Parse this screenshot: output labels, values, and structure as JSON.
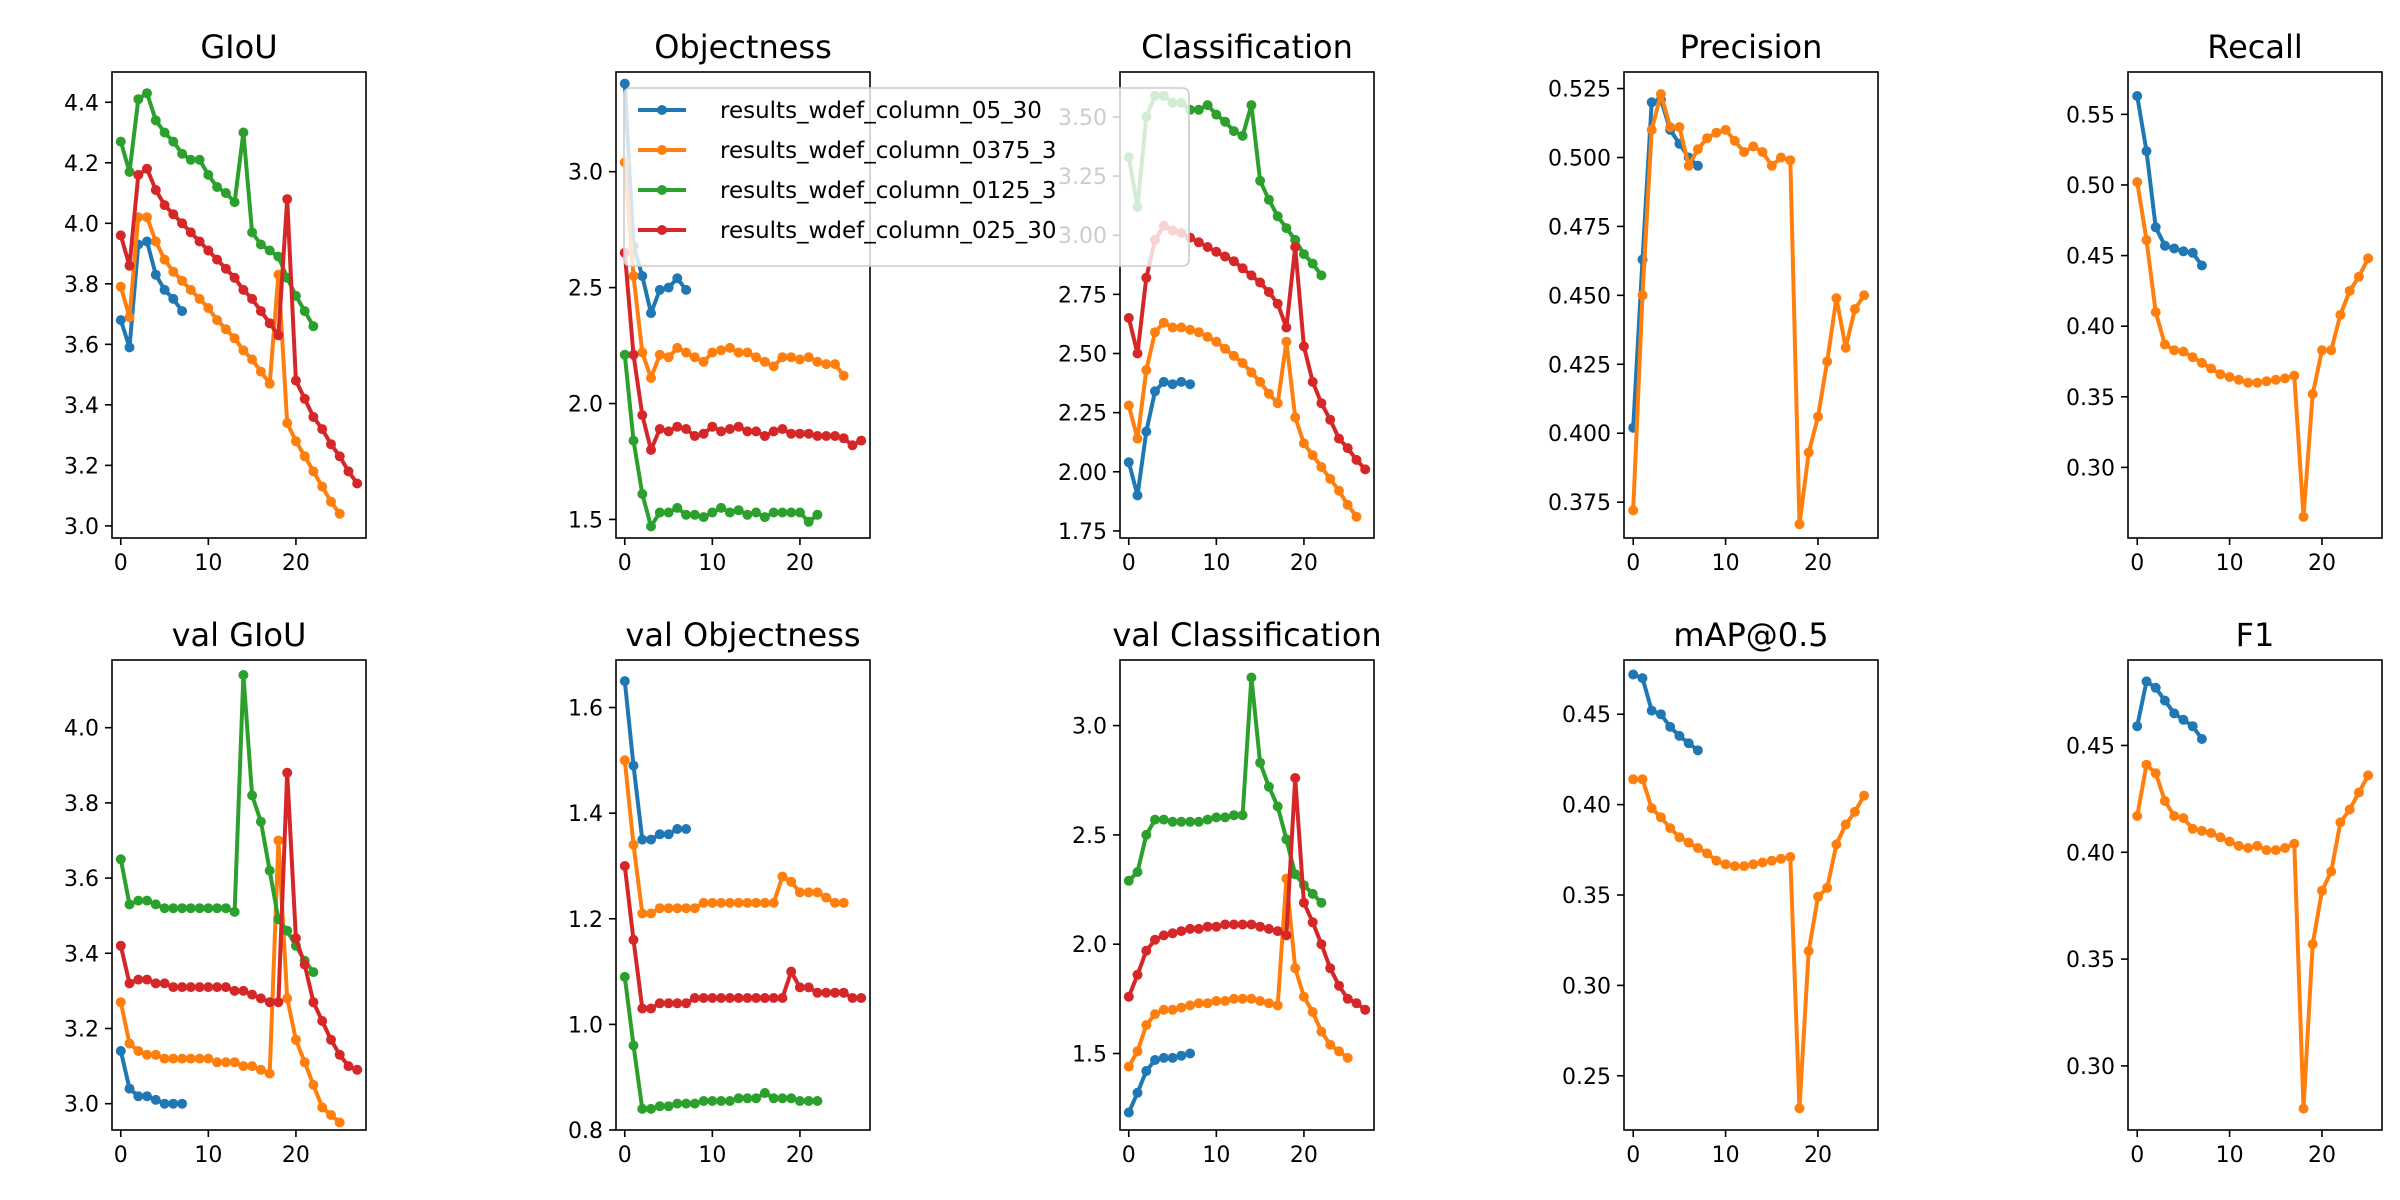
{
  "figure": {
    "background": "#ffffff",
    "series_colors": [
      "#1f77b4",
      "#ff7f0e",
      "#2ca02c",
      "#d62728"
    ]
  },
  "legend": {
    "placement": "overlapping-objectness-classification-top",
    "entries": [
      {
        "label": "results_wdef_column_05_30",
        "color": "#1f77b4"
      },
      {
        "label": "results_wdef_column_0375_3",
        "color": "#ff7f0e"
      },
      {
        "label": "results_wdef_column_0125_3",
        "color": "#2ca02c"
      },
      {
        "label": "results_wdef_column_025_30",
        "color": "#d62728"
      }
    ]
  },
  "chart_data": [
    {
      "type": "line",
      "title": "GIoU",
      "xlim": [
        -1,
        28
      ],
      "ylim": [
        2.96,
        4.5
      ],
      "xticks": [
        0,
        10,
        20
      ],
      "yticks": [
        3.0,
        3.2,
        3.4,
        3.6,
        3.8,
        4.0,
        4.2,
        4.4
      ],
      "ytick_labels": [
        "3.0",
        "3.2",
        "3.4",
        "3.6",
        "3.8",
        "4.0",
        "4.2",
        "4.4"
      ],
      "series": [
        {
          "color": "#1f77b4",
          "values": [
            3.68,
            3.59,
            3.93,
            3.94,
            3.83,
            3.78,
            3.75,
            3.71
          ]
        },
        {
          "color": "#ff7f0e",
          "values": [
            3.79,
            3.69,
            4.02,
            4.02,
            3.94,
            3.88,
            3.84,
            3.81,
            3.78,
            3.75,
            3.72,
            3.68,
            3.65,
            3.62,
            3.58,
            3.55,
            3.51,
            3.47,
            3.83,
            3.34,
            3.28,
            3.23,
            3.18,
            3.13,
            3.08,
            3.04
          ]
        },
        {
          "color": "#2ca02c",
          "values": [
            4.27,
            4.17,
            4.41,
            4.43,
            4.34,
            4.3,
            4.27,
            4.23,
            4.21,
            4.21,
            4.16,
            4.12,
            4.1,
            4.07,
            4.3,
            3.97,
            3.93,
            3.91,
            3.89,
            3.82,
            3.76,
            3.71,
            3.66
          ]
        },
        {
          "color": "#d62728",
          "values": [
            3.96,
            3.86,
            4.16,
            4.18,
            4.11,
            4.06,
            4.03,
            4.0,
            3.97,
            3.94,
            3.91,
            3.88,
            3.85,
            3.82,
            3.78,
            3.75,
            3.71,
            3.67,
            3.63,
            4.08,
            3.48,
            3.42,
            3.36,
            3.32,
            3.27,
            3.23,
            3.18,
            3.14
          ]
        }
      ]
    },
    {
      "type": "line",
      "title": "Objectness",
      "xlim": [
        -1,
        28
      ],
      "ylim": [
        1.42,
        3.43
      ],
      "xticks": [
        0,
        10,
        20
      ],
      "yticks": [
        1.5,
        2.0,
        2.5,
        3.0
      ],
      "ytick_labels": [
        "1.5",
        "2.0",
        "2.5",
        "3.0"
      ],
      "series": [
        {
          "color": "#1f77b4",
          "values": [
            3.38,
            2.68,
            2.55,
            2.39,
            2.49,
            2.5,
            2.54,
            2.49
          ]
        },
        {
          "color": "#ff7f0e",
          "values": [
            3.04,
            2.55,
            2.22,
            2.11,
            2.21,
            2.2,
            2.24,
            2.22,
            2.2,
            2.18,
            2.22,
            2.23,
            2.24,
            2.22,
            2.22,
            2.2,
            2.18,
            2.16,
            2.2,
            2.2,
            2.19,
            2.2,
            2.18,
            2.17,
            2.17,
            2.12
          ]
        },
        {
          "color": "#2ca02c",
          "values": [
            2.21,
            1.84,
            1.61,
            1.47,
            1.53,
            1.53,
            1.55,
            1.52,
            1.52,
            1.51,
            1.53,
            1.55,
            1.53,
            1.54,
            1.52,
            1.53,
            1.51,
            1.53,
            1.53,
            1.53,
            1.53,
            1.49,
            1.52
          ]
        },
        {
          "color": "#d62728",
          "values": [
            2.65,
            2.21,
            1.95,
            1.8,
            1.89,
            1.88,
            1.9,
            1.89,
            1.86,
            1.87,
            1.9,
            1.88,
            1.89,
            1.9,
            1.88,
            1.88,
            1.86,
            1.88,
            1.89,
            1.87,
            1.87,
            1.87,
            1.86,
            1.86,
            1.86,
            1.85,
            1.82,
            1.84
          ]
        }
      ]
    },
    {
      "type": "line",
      "title": "Classification",
      "xlim": [
        -1,
        28
      ],
      "ylim": [
        1.72,
        3.69
      ],
      "xticks": [
        0,
        10,
        20
      ],
      "yticks": [
        1.75,
        2.0,
        2.25,
        2.5,
        2.75,
        3.0,
        3.25,
        3.5
      ],
      "ytick_labels": [
        "1.75",
        "2.00",
        "2.25",
        "2.50",
        "2.75",
        "3.00",
        "3.25",
        "3.50"
      ],
      "series": [
        {
          "color": "#1f77b4",
          "values": [
            2.04,
            1.9,
            2.17,
            2.34,
            2.38,
            2.37,
            2.38,
            2.37
          ]
        },
        {
          "color": "#ff7f0e",
          "values": [
            2.28,
            2.14,
            2.43,
            2.59,
            2.63,
            2.61,
            2.61,
            2.6,
            2.59,
            2.57,
            2.55,
            2.52,
            2.49,
            2.46,
            2.42,
            2.38,
            2.33,
            2.29,
            2.55,
            2.23,
            2.12,
            2.07,
            2.02,
            1.97,
            1.92,
            1.86,
            1.81
          ]
        },
        {
          "color": "#2ca02c",
          "values": [
            3.33,
            3.12,
            3.5,
            3.59,
            3.59,
            3.56,
            3.56,
            3.53,
            3.53,
            3.55,
            3.51,
            3.48,
            3.44,
            3.42,
            3.55,
            3.23,
            3.15,
            3.08,
            3.03,
            2.98,
            2.92,
            2.88,
            2.83
          ]
        },
        {
          "color": "#d62728",
          "values": [
            2.65,
            2.5,
            2.82,
            2.98,
            3.04,
            3.02,
            3.01,
            2.99,
            2.97,
            2.95,
            2.93,
            2.91,
            2.89,
            2.86,
            2.83,
            2.8,
            2.76,
            2.71,
            2.61,
            2.95,
            2.53,
            2.38,
            2.29,
            2.22,
            2.14,
            2.1,
            2.05,
            2.01
          ]
        }
      ]
    },
    {
      "type": "line",
      "title": "Precision",
      "xlim": [
        -1,
        26.5
      ],
      "ylim": [
        0.362,
        0.531
      ],
      "xticks": [
        0,
        10,
        20
      ],
      "yticks": [
        0.375,
        0.4,
        0.425,
        0.45,
        0.475,
        0.5,
        0.525
      ],
      "ytick_labels": [
        "0.375",
        "0.400",
        "0.425",
        "0.450",
        "0.475",
        "0.500",
        "0.525"
      ],
      "series": [
        {
          "color": "#1f77b4",
          "values": [
            0.402,
            0.463,
            0.52,
            0.521,
            0.51,
            0.505,
            0.5,
            0.497
          ]
        },
        {
          "color": "#ff7f0e",
          "values": [
            0.372,
            0.45,
            0.51,
            0.523,
            0.511,
            0.511,
            0.497,
            0.503,
            0.507,
            0.509,
            0.51,
            0.506,
            0.502,
            0.504,
            0.502,
            0.497,
            0.5,
            0.499,
            0.367,
            0.393,
            0.406,
            0.426,
            0.449,
            0.431,
            0.445,
            0.45
          ]
        }
      ]
    },
    {
      "type": "line",
      "title": "Recall",
      "xlim": [
        -1,
        26.5
      ],
      "ylim": [
        0.25,
        0.58
      ],
      "xticks": [
        0,
        10,
        20
      ],
      "yticks": [
        0.3,
        0.35,
        0.4,
        0.45,
        0.5,
        0.55
      ],
      "ytick_labels": [
        "0.30",
        "0.35",
        "0.40",
        "0.45",
        "0.50",
        "0.55"
      ],
      "series": [
        {
          "color": "#1f77b4",
          "values": [
            0.563,
            0.524,
            0.47,
            0.457,
            0.455,
            0.453,
            0.452,
            0.443
          ]
        },
        {
          "color": "#ff7f0e",
          "values": [
            0.502,
            0.461,
            0.41,
            0.387,
            0.383,
            0.382,
            0.378,
            0.374,
            0.37,
            0.366,
            0.364,
            0.362,
            0.36,
            0.36,
            0.361,
            0.362,
            0.363,
            0.365,
            0.265,
            0.352,
            0.383,
            0.383,
            0.408,
            0.425,
            0.435,
            0.448
          ]
        }
      ]
    },
    {
      "type": "line",
      "title": "val GIoU",
      "xlim": [
        -1,
        28
      ],
      "ylim": [
        2.93,
        4.18
      ],
      "xticks": [
        0,
        10,
        20
      ],
      "yticks": [
        3.0,
        3.2,
        3.4,
        3.6,
        3.8,
        4.0
      ],
      "ytick_labels": [
        "3.0",
        "3.2",
        "3.4",
        "3.6",
        "3.8",
        "4.0"
      ],
      "series": [
        {
          "color": "#1f77b4",
          "values": [
            3.14,
            3.04,
            3.02,
            3.02,
            3.01,
            3.0,
            3.0,
            3.0
          ]
        },
        {
          "color": "#ff7f0e",
          "values": [
            3.27,
            3.16,
            3.14,
            3.13,
            3.13,
            3.12,
            3.12,
            3.12,
            3.12,
            3.12,
            3.12,
            3.11,
            3.11,
            3.11,
            3.1,
            3.1,
            3.09,
            3.08,
            3.7,
            3.28,
            3.17,
            3.11,
            3.05,
            2.99,
            2.97,
            2.95
          ]
        },
        {
          "color": "#2ca02c",
          "values": [
            3.65,
            3.53,
            3.54,
            3.54,
            3.53,
            3.52,
            3.52,
            3.52,
            3.52,
            3.52,
            3.52,
            3.52,
            3.52,
            3.51,
            4.14,
            3.82,
            3.75,
            3.62,
            3.49,
            3.46,
            3.42,
            3.38,
            3.35
          ]
        },
        {
          "color": "#d62728",
          "values": [
            3.42,
            3.32,
            3.33,
            3.33,
            3.32,
            3.32,
            3.31,
            3.31,
            3.31,
            3.31,
            3.31,
            3.31,
            3.31,
            3.3,
            3.3,
            3.29,
            3.28,
            3.27,
            3.27,
            3.88,
            3.44,
            3.37,
            3.27,
            3.22,
            3.17,
            3.13,
            3.1,
            3.09
          ]
        }
      ]
    },
    {
      "type": "line",
      "title": "val Objectness",
      "xlim": [
        -1,
        28
      ],
      "ylim": [
        0.8,
        1.69
      ],
      "xticks": [
        0,
        10,
        20
      ],
      "yticks": [
        0.8,
        1.0,
        1.2,
        1.4,
        1.6
      ],
      "ytick_labels": [
        "0.8",
        "1.0",
        "1.2",
        "1.4",
        "1.6"
      ],
      "series": [
        {
          "color": "#1f77b4",
          "values": [
            1.65,
            1.49,
            1.35,
            1.35,
            1.36,
            1.36,
            1.37,
            1.37
          ]
        },
        {
          "color": "#ff7f0e",
          "values": [
            1.5,
            1.34,
            1.21,
            1.21,
            1.22,
            1.22,
            1.22,
            1.22,
            1.22,
            1.23,
            1.23,
            1.23,
            1.23,
            1.23,
            1.23,
            1.23,
            1.23,
            1.23,
            1.28,
            1.27,
            1.25,
            1.25,
            1.25,
            1.24,
            1.23,
            1.23
          ]
        },
        {
          "color": "#2ca02c",
          "values": [
            1.09,
            0.96,
            0.84,
            0.84,
            0.845,
            0.845,
            0.85,
            0.85,
            0.85,
            0.855,
            0.855,
            0.855,
            0.855,
            0.86,
            0.86,
            0.86,
            0.87,
            0.86,
            0.86,
            0.86,
            0.855,
            0.855,
            0.855
          ]
        },
        {
          "color": "#d62728",
          "values": [
            1.3,
            1.16,
            1.03,
            1.03,
            1.04,
            1.04,
            1.04,
            1.04,
            1.05,
            1.05,
            1.05,
            1.05,
            1.05,
            1.05,
            1.05,
            1.05,
            1.05,
            1.05,
            1.05,
            1.1,
            1.07,
            1.07,
            1.06,
            1.06,
            1.06,
            1.06,
            1.05,
            1.05
          ]
        }
      ]
    },
    {
      "type": "line",
      "title": "val Classification",
      "xlim": [
        -1,
        28
      ],
      "ylim": [
        1.15,
        3.3
      ],
      "xticks": [
        0,
        10,
        20
      ],
      "yticks": [
        1.5,
        2.0,
        2.5,
        3.0
      ],
      "ytick_labels": [
        "1.5",
        "2.0",
        "2.5",
        "3.0"
      ],
      "series": [
        {
          "color": "#1f77b4",
          "values": [
            1.23,
            1.32,
            1.42,
            1.47,
            1.48,
            1.48,
            1.49,
            1.5
          ]
        },
        {
          "color": "#ff7f0e",
          "values": [
            1.44,
            1.51,
            1.63,
            1.68,
            1.7,
            1.7,
            1.71,
            1.72,
            1.73,
            1.73,
            1.74,
            1.74,
            1.75,
            1.75,
            1.75,
            1.74,
            1.73,
            1.72,
            2.3,
            1.89,
            1.76,
            1.69,
            1.6,
            1.54,
            1.51,
            1.48
          ]
        },
        {
          "color": "#2ca02c",
          "values": [
            2.29,
            2.33,
            2.5,
            2.57,
            2.57,
            2.56,
            2.56,
            2.56,
            2.56,
            2.57,
            2.58,
            2.58,
            2.59,
            2.59,
            3.22,
            2.83,
            2.72,
            2.63,
            2.48,
            2.32,
            2.27,
            2.23,
            2.19
          ]
        },
        {
          "color": "#d62728",
          "values": [
            1.76,
            1.86,
            1.97,
            2.02,
            2.04,
            2.05,
            2.06,
            2.07,
            2.07,
            2.08,
            2.08,
            2.09,
            2.09,
            2.09,
            2.09,
            2.08,
            2.07,
            2.06,
            2.04,
            2.76,
            2.19,
            2.1,
            2.0,
            1.89,
            1.81,
            1.75,
            1.73,
            1.7
          ]
        }
      ]
    },
    {
      "type": "line",
      "title": "mAP@0.5",
      "xlim": [
        -1,
        26.5
      ],
      "ylim": [
        0.22,
        0.48
      ],
      "xticks": [
        0,
        10,
        20
      ],
      "yticks": [
        0.25,
        0.3,
        0.35,
        0.4,
        0.45
      ],
      "ytick_labels": [
        "0.25",
        "0.30",
        "0.35",
        "0.40",
        "0.45"
      ],
      "series": [
        {
          "color": "#1f77b4",
          "values": [
            0.472,
            0.47,
            0.452,
            0.45,
            0.443,
            0.438,
            0.434,
            0.43
          ]
        },
        {
          "color": "#ff7f0e",
          "values": [
            0.414,
            0.414,
            0.398,
            0.393,
            0.387,
            0.382,
            0.379,
            0.376,
            0.373,
            0.369,
            0.367,
            0.366,
            0.366,
            0.367,
            0.368,
            0.369,
            0.37,
            0.371,
            0.232,
            0.319,
            0.349,
            0.354,
            0.378,
            0.389,
            0.396,
            0.405
          ]
        }
      ]
    },
    {
      "type": "line",
      "title": "F1",
      "xlim": [
        -1,
        26.5
      ],
      "ylim": [
        0.27,
        0.49
      ],
      "xticks": [
        0,
        10,
        20
      ],
      "yticks": [
        0.3,
        0.35,
        0.4,
        0.45
      ],
      "ytick_labels": [
        "0.30",
        "0.35",
        "0.40",
        "0.45"
      ],
      "series": [
        {
          "color": "#1f77b4",
          "values": [
            0.459,
            0.48,
            0.477,
            0.471,
            0.465,
            0.462,
            0.459,
            0.453
          ]
        },
        {
          "color": "#ff7f0e",
          "values": [
            0.417,
            0.441,
            0.437,
            0.424,
            0.417,
            0.416,
            0.411,
            0.41,
            0.409,
            0.407,
            0.405,
            0.403,
            0.402,
            0.403,
            0.401,
            0.401,
            0.402,
            0.404,
            0.28,
            0.357,
            0.382,
            0.391,
            0.414,
            0.42,
            0.428,
            0.436
          ]
        }
      ]
    }
  ]
}
